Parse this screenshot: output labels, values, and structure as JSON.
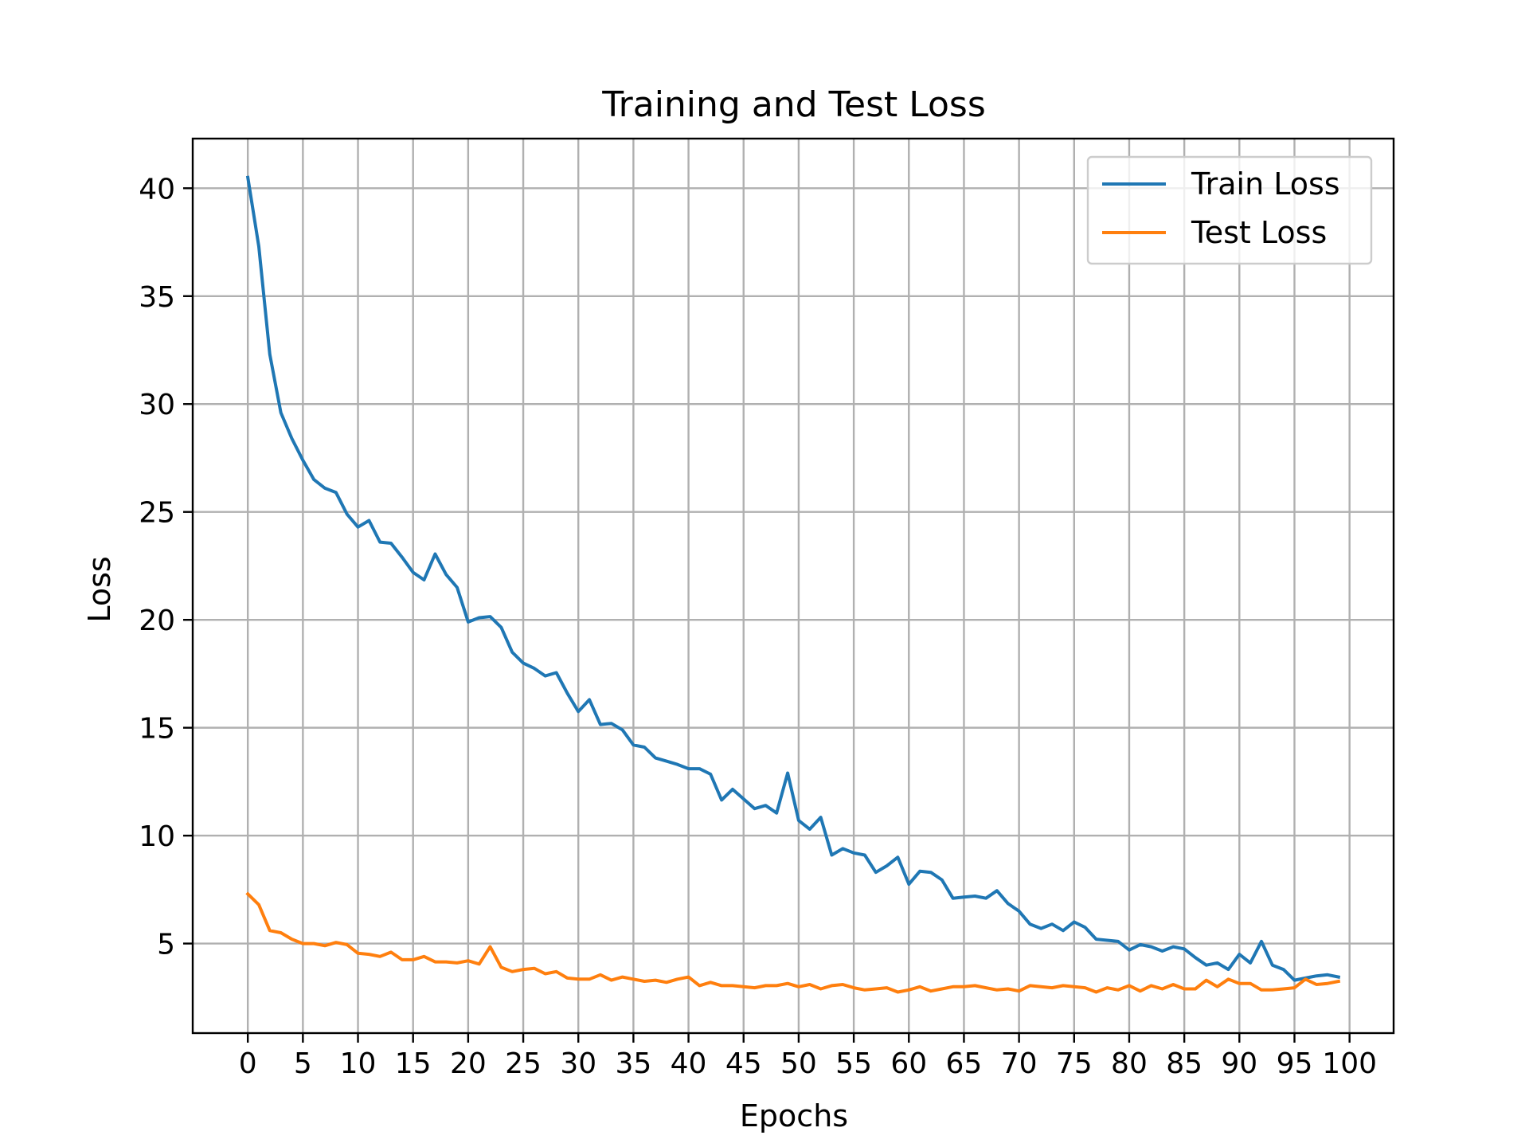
{
  "chart_data": {
    "type": "line",
    "title": "Training and Test Loss",
    "xlabel": "Epochs",
    "ylabel": "Loss",
    "xlim": [
      -5,
      104
    ],
    "ylim": [
      0.85,
      42.3
    ],
    "grid": true,
    "legend_position": "top-right",
    "xticks": [
      0,
      5,
      10,
      15,
      20,
      25,
      30,
      35,
      40,
      45,
      50,
      55,
      60,
      65,
      70,
      75,
      80,
      85,
      90,
      95,
      100
    ],
    "yticks": [
      5,
      10,
      15,
      20,
      25,
      30,
      35,
      40
    ],
    "series": [
      {
        "name": "Train Loss",
        "color": "#1f77b4",
        "values": [
          40.5,
          37.3,
          32.3,
          29.6,
          28.4,
          27.4,
          26.5,
          26.1,
          25.9,
          24.9,
          24.3,
          24.6,
          23.6,
          23.55,
          22.9,
          22.2,
          21.85,
          23.05,
          22.1,
          21.5,
          19.9,
          20.1,
          20.15,
          19.65,
          18.5,
          18.0,
          17.75,
          17.4,
          17.55,
          16.6,
          15.75,
          16.3,
          15.15,
          15.2,
          14.9,
          14.2,
          14.1,
          13.6,
          13.45,
          13.3,
          13.1,
          13.1,
          12.85,
          11.65,
          12.15,
          11.7,
          11.25,
          11.4,
          11.05,
          12.9,
          10.7,
          10.3,
          10.85,
          9.1,
          9.4,
          9.2,
          9.1,
          8.3,
          8.6,
          9.0,
          7.75,
          8.35,
          8.3,
          7.95,
          7.1,
          7.15,
          7.2,
          7.1,
          7.45,
          6.85,
          6.5,
          5.9,
          5.7,
          5.9,
          5.6,
          6.0,
          5.75,
          5.2,
          5.15,
          5.1,
          4.7,
          4.95,
          4.85,
          4.65,
          4.85,
          4.75,
          4.35,
          4.0,
          4.1,
          3.8,
          4.5,
          4.1,
          5.1,
          4.0,
          3.8,
          3.3,
          3.4,
          3.5,
          3.55,
          3.45
        ]
      },
      {
        "name": "Test Loss",
        "color": "#ff7f0e",
        "values": [
          7.3,
          6.8,
          5.6,
          5.5,
          5.2,
          5.0,
          5.0,
          4.9,
          5.05,
          4.95,
          4.55,
          4.5,
          4.4,
          4.6,
          4.25,
          4.25,
          4.4,
          4.15,
          4.15,
          4.1,
          4.2,
          4.05,
          4.85,
          3.9,
          3.7,
          3.8,
          3.85,
          3.6,
          3.7,
          3.4,
          3.35,
          3.35,
          3.55,
          3.3,
          3.45,
          3.35,
          3.25,
          3.3,
          3.2,
          3.35,
          3.45,
          3.05,
          3.2,
          3.05,
          3.05,
          3.0,
          2.95,
          3.05,
          3.05,
          3.15,
          3.0,
          3.1,
          2.9,
          3.05,
          3.1,
          2.95,
          2.85,
          2.9,
          2.95,
          2.75,
          2.85,
          3.0,
          2.8,
          2.9,
          3.0,
          3.0,
          3.05,
          2.95,
          2.85,
          2.9,
          2.8,
          3.05,
          3.0,
          2.95,
          3.05,
          3.0,
          2.95,
          2.75,
          2.95,
          2.85,
          3.05,
          2.8,
          3.05,
          2.9,
          3.1,
          2.9,
          2.9,
          3.3,
          3.0,
          3.35,
          3.15,
          3.15,
          2.85,
          2.85,
          2.9,
          2.95,
          3.35,
          3.1,
          3.15,
          3.25
        ]
      }
    ]
  }
}
